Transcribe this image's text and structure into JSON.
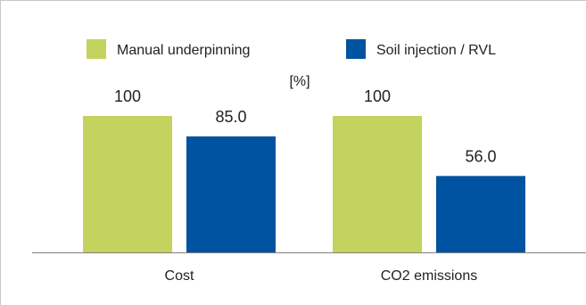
{
  "chart_data": {
    "type": "bar",
    "categories": [
      "Cost",
      "CO2 emissions"
    ],
    "series": [
      {
        "name": "Manual underpinning",
        "values": [
          100,
          100
        ],
        "labels": [
          "100",
          "100"
        ]
      },
      {
        "name": "Soil injection / RVL",
        "values": [
          85.0,
          56.0
        ],
        "labels": [
          "85.0",
          "56.0"
        ]
      }
    ],
    "ylabel": "[%]",
    "ylim": [
      0,
      100
    ],
    "grid": false,
    "legend_position": "top"
  },
  "colors": {
    "series": [
      "#c3d35e",
      "#0053a0"
    ],
    "axis": "#808080",
    "frame": "#c8c8c8"
  }
}
